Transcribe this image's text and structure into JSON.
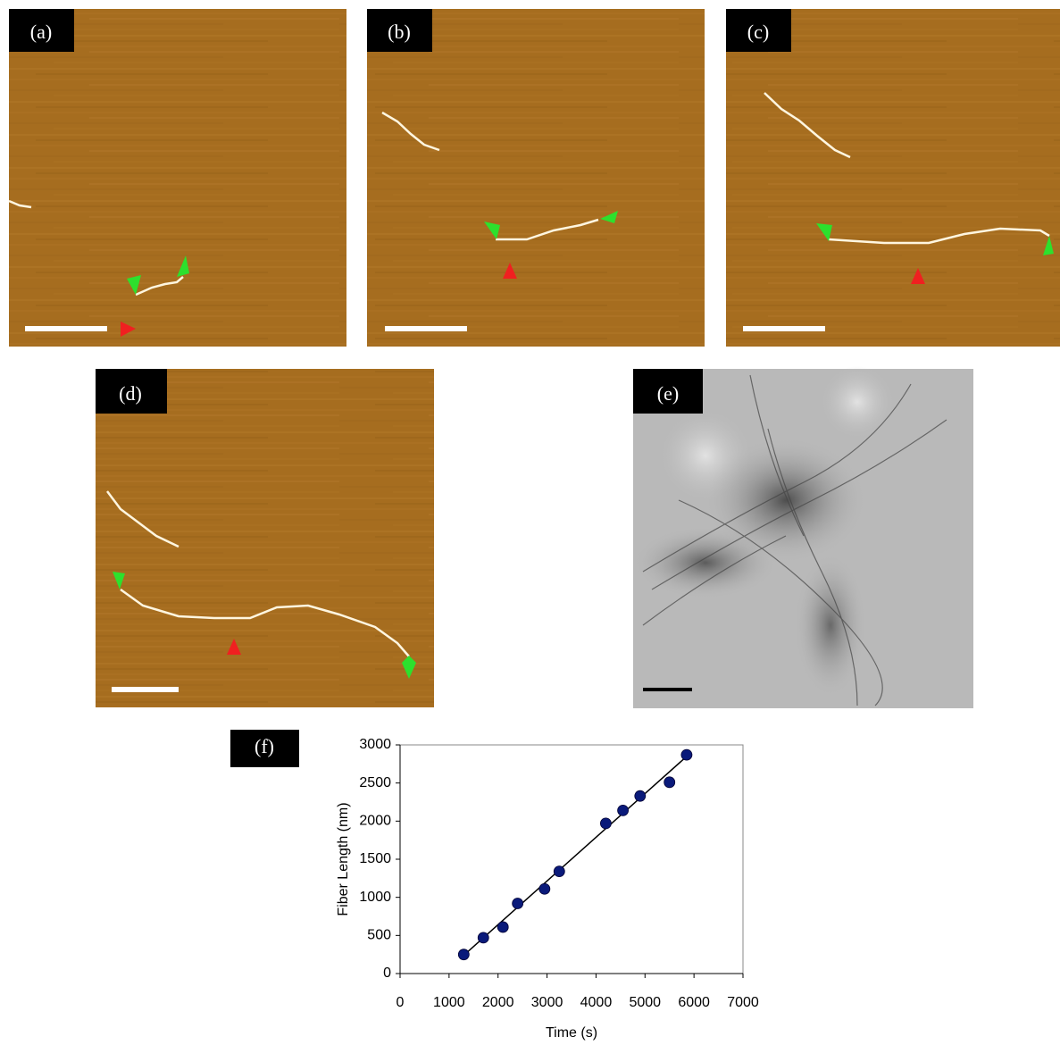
{
  "panels": [
    "(a)",
    "(b)",
    "(c)",
    "(d)",
    "(e)",
    "(f)"
  ],
  "chart_data": {
    "type": "scatter",
    "x_label": "Time (s)",
    "y_label": "Fiber Length (nm)",
    "x": [
      1300,
      1700,
      2100,
      2400,
      2950,
      3250,
      4200,
      4550,
      4900,
      5500,
      5850
    ],
    "values": [
      250,
      470,
      610,
      920,
      1110,
      1340,
      1970,
      2140,
      2330,
      2510,
      2870
    ],
    "color": "#0a1a7a",
    "fit": {
      "x": [
        1300,
        5800
      ],
      "y": [
        240,
        2820
      ],
      "color": "#000000"
    },
    "xlim": [
      0,
      7000
    ],
    "xticks": [
      0,
      1000,
      2000,
      3000,
      4000,
      5000,
      6000,
      7000
    ],
    "ylim": [
      0,
      3000
    ],
    "yticks": [
      0,
      500,
      1000,
      1500,
      2000,
      2500,
      3000
    ]
  }
}
